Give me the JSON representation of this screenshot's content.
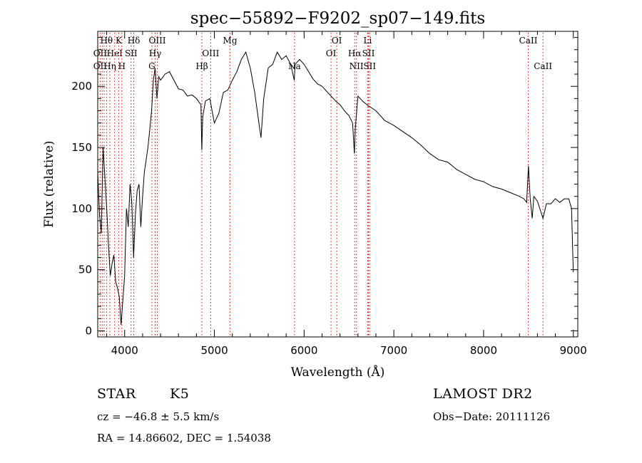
{
  "chart_data": {
    "type": "line",
    "title": "spec−55892−F9202_sp07−149.fits",
    "xlabel": "Wavelength (Å)",
    "ylabel": "Flux (relative)",
    "xlim": [
      3700,
      9050
    ],
    "ylim": [
      -5,
      245
    ],
    "xticks": [
      4000,
      5000,
      6000,
      7000,
      8000,
      9000
    ],
    "yticks": [
      0,
      50,
      100,
      150,
      200
    ],
    "grid": false,
    "series": [
      {
        "x": [
          3700,
          3720,
          3740,
          3760,
          3780,
          3800,
          3820,
          3840,
          3860,
          3880,
          3900,
          3920,
          3940,
          3960,
          3980,
          4000,
          4020,
          4040,
          4060,
          4080,
          4100,
          4120,
          4140,
          4160,
          4180,
          4200,
          4220,
          4240,
          4260,
          4280,
          4300,
          4320,
          4340,
          4360,
          4380,
          4400,
          4450,
          4500,
          4550,
          4600,
          4650,
          4700,
          4750,
          4800,
          4850,
          4860,
          4870,
          4900,
          4950,
          5000,
          5050,
          5100,
          5150,
          5200,
          5250,
          5300,
          5350,
          5400,
          5450,
          5500,
          5520,
          5550,
          5600,
          5650,
          5700,
          5750,
          5800,
          5850,
          5890,
          5900,
          5950,
          6000,
          6050,
          6100,
          6150,
          6200,
          6250,
          6300,
          6350,
          6400,
          6450,
          6500,
          6540,
          6560,
          6570,
          6600,
          6650,
          6700,
          6800,
          6900,
          7000,
          7100,
          7200,
          7300,
          7400,
          7500,
          7600,
          7700,
          7800,
          7900,
          8000,
          8100,
          8200,
          8300,
          8400,
          8450,
          8480,
          8500,
          8520,
          8542,
          8560,
          8600,
          8662,
          8700,
          8750,
          8800,
          8850,
          8900,
          8950,
          8980,
          9000
        ],
        "y": [
          130,
          95,
          80,
          150,
          125,
          100,
          70,
          45,
          55,
          62,
          40,
          35,
          28,
          5,
          25,
          45,
          100,
          85,
          120,
          105,
          60,
          95,
          115,
          120,
          85,
          110,
          130,
          140,
          150,
          165,
          180,
          205,
          215,
          190,
          208,
          205,
          210,
          212,
          205,
          198,
          197,
          192,
          193,
          190,
          185,
          148,
          175,
          188,
          190,
          170,
          178,
          195,
          197,
          205,
          212,
          222,
          228,
          215,
          195,
          168,
          158,
          190,
          215,
          218,
          228,
          222,
          225,
          218,
          205,
          218,
          222,
          218,
          212,
          206,
          202,
          200,
          196,
          192,
          188,
          185,
          180,
          176,
          170,
          145,
          165,
          192,
          188,
          185,
          180,
          172,
          168,
          163,
          158,
          152,
          145,
          140,
          138,
          132,
          128,
          124,
          122,
          118,
          116,
          113,
          110,
          108,
          105,
          135,
          108,
          92,
          110,
          106,
          92,
          104,
          104,
          108,
          105,
          108,
          108,
          100,
          48
        ]
      }
    ],
    "line_markers": [
      {
        "label": "Hθ",
        "x": 3798,
        "row": 0
      },
      {
        "label": "K",
        "x": 3934,
        "row": 0
      },
      {
        "label": "Hδ",
        "x": 4102,
        "row": 0
      },
      {
        "label": "OIII",
        "x": 4364,
        "row": 0
      },
      {
        "label": "Mg",
        "x": 5175,
        "row": 0
      },
      {
        "label": "OI",
        "x": 6364,
        "row": 0
      },
      {
        "label": "Li",
        "x": 6708,
        "row": 0
      },
      {
        "label": "CaII",
        "x": 8498,
        "row": 0
      },
      {
        "label": "OII",
        "x": 3727,
        "row": 1
      },
      {
        "label": "HeI",
        "x": 3889,
        "row": 1
      },
      {
        "label": "SII",
        "x": 4072,
        "row": 1
      },
      {
        "label": "Hγ",
        "x": 4340,
        "row": 1
      },
      {
        "label": "OIII",
        "x": 4959,
        "row": 1
      },
      {
        "label": "OI",
        "x": 6300,
        "row": 1
      },
      {
        "label": "Hα",
        "x": 6563,
        "row": 1
      },
      {
        "label": "SII",
        "x": 6717,
        "row": 1
      },
      {
        "label": "OII",
        "x": 3727,
        "row": 2
      },
      {
        "label": "Hη",
        "x": 3835,
        "row": 2
      },
      {
        "label": "H",
        "x": 3969,
        "row": 2
      },
      {
        "label": "G",
        "x": 4304,
        "row": 2
      },
      {
        "label": "Hβ",
        "x": 4861,
        "row": 2
      },
      {
        "label": "Na",
        "x": 5893,
        "row": 2
      },
      {
        "label": "NII",
        "x": 6583,
        "row": 2
      },
      {
        "label": "SII",
        "x": 6731,
        "row": 2
      },
      {
        "label": "CaII",
        "x": 8662,
        "row": 2
      }
    ],
    "marker_lines_x": [
      3727,
      3750,
      3771,
      3798,
      3835,
      3889,
      3934,
      3969,
      4072,
      4102,
      4304,
      4340,
      4364,
      4861,
      4959,
      5175,
      5893,
      6300,
      6364,
      6563,
      6583,
      6708,
      6717,
      6731,
      8498,
      8662
    ],
    "marker_color": "#cc0000"
  },
  "info": {
    "object_class": "STAR",
    "subclass": "K5",
    "survey": "LAMOST DR2",
    "redshift_line": "cz = −46.8 ± 5.5 km/s",
    "obs_date": "Obs−Date: 20111126",
    "coords": "RA =  14.86602, DEC =    1.54038"
  }
}
